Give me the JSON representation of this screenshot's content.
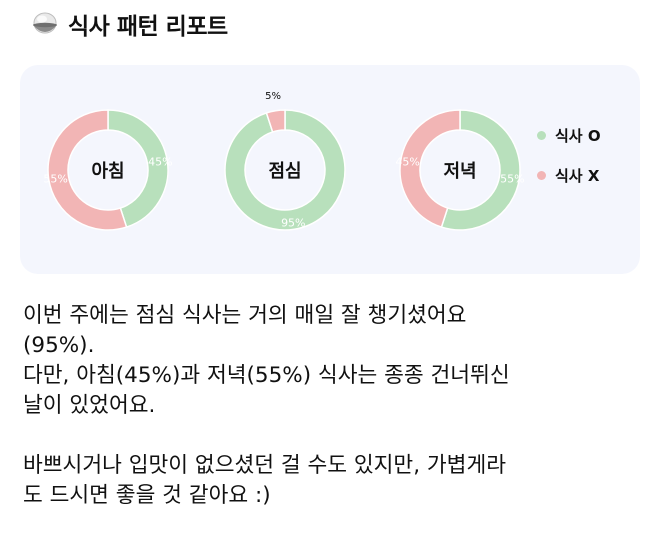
{
  "header": {
    "title": "식사 패턴 리포트",
    "icon": "rice-bowl-icon"
  },
  "chart_data": {
    "type": "pie",
    "charts": [
      {
        "name": "아침",
        "values": [
          45,
          55
        ],
        "labels": [
          "45%",
          "55%"
        ]
      },
      {
        "name": "점심",
        "values": [
          95,
          5
        ],
        "labels": [
          "95%",
          "5%"
        ]
      },
      {
        "name": "저녁",
        "values": [
          55,
          45
        ],
        "labels": [
          "55%",
          "45%"
        ]
      }
    ],
    "legend": [
      {
        "label": "식사 O",
        "color": "#b8e0bc"
      },
      {
        "label": "식사 X",
        "color": "#f2b5b5"
      }
    ],
    "legend_position": "right"
  },
  "message": {
    "line1": "이번 주에는 점심 식사는 거의 매일 잘 챙기셨어요",
    "line2": "(95%).",
    "line3": "다만, 아침(45%)과 저녁(55%) 식사는 종종 건너뛰신",
    "line4": "날이 있었어요.",
    "line5": "바쁘시거나 입맛이 없으셨던 걸 수도 있지만, 가볍게라",
    "line6": "도 드시면 좋을 것 같아요 :)"
  }
}
